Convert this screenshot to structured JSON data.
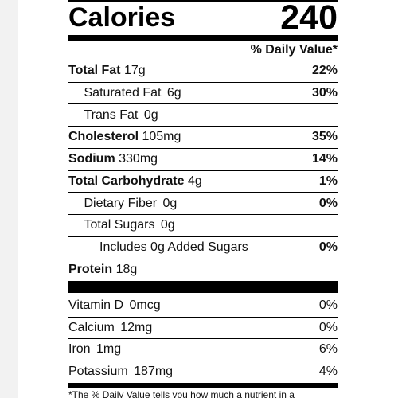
{
  "calories": {
    "label": "Calories",
    "value": 240
  },
  "daily_value_header": "% Daily Value*",
  "nutrients": [
    {
      "name": "Total Fat",
      "amount": "17g",
      "dv": "22%",
      "bold": true,
      "indent": 0
    },
    {
      "name": "Saturated Fat",
      "amount": "6g",
      "dv": "30%",
      "bold": false,
      "indent": 1
    },
    {
      "name": "Trans Fat",
      "amount": "0g",
      "dv": null,
      "bold": false,
      "indent": 1
    },
    {
      "name": "Cholesterol",
      "amount": "105mg",
      "dv": "35%",
      "bold": true,
      "indent": 0
    },
    {
      "name": "Sodium",
      "amount": "330mg",
      "dv": "14%",
      "bold": true,
      "indent": 0
    },
    {
      "name": "Total Carbohydrate",
      "amount": "4g",
      "dv": "1%",
      "bold": true,
      "indent": 0
    },
    {
      "name": "Dietary Fiber",
      "amount": "0g",
      "dv": "0%",
      "bold": false,
      "indent": 1
    },
    {
      "name": "Total Sugars",
      "amount": "0g",
      "dv": null,
      "bold": false,
      "indent": 1
    },
    {
      "name": "Includes 0g Added Sugars",
      "amount": null,
      "dv": "0%",
      "bold": false,
      "indent": 2
    },
    {
      "name": "Protein",
      "amount": "18g",
      "dv": null,
      "bold": true,
      "indent": 0
    }
  ],
  "vitamins": [
    {
      "name": "Vitamin D",
      "amount": "0mcg",
      "dv": "0%"
    },
    {
      "name": "Calcium",
      "amount": "12mg",
      "dv": "0%"
    },
    {
      "name": "Iron",
      "amount": "1mg",
      "dv": "6%"
    },
    {
      "name": "Potassium",
      "amount": "187mg",
      "dv": "4%"
    }
  ],
  "footnote": "*The % Daily Value tells you how much a nutrient in a"
}
